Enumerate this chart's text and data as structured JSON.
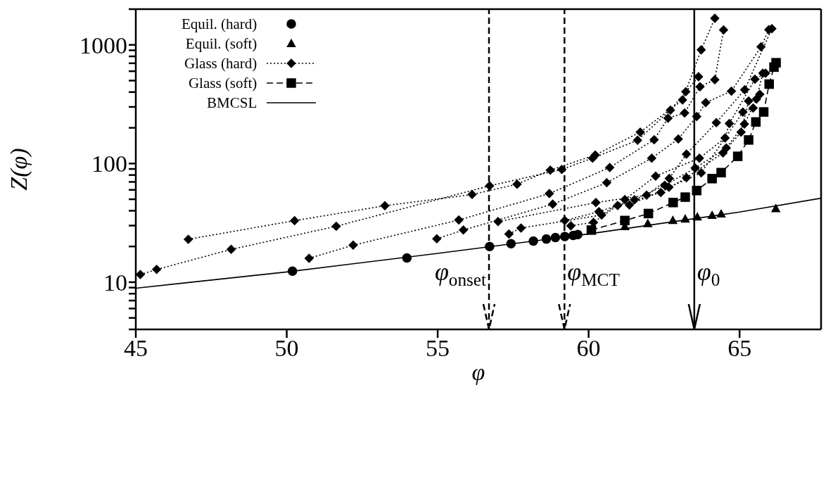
{
  "chart_data": {
    "type": "line",
    "xlabel": "φ",
    "ylabel": "Z(φ)",
    "xlim": [
      45,
      67.7
    ],
    "ylim": [
      4,
      2000
    ],
    "log": "y",
    "legend": "top left",
    "grid": false,
    "xticks": [
      45,
      50,
      55,
      60,
      65
    ],
    "yticks": [
      {
        "value": 4,
        "label": null
      },
      {
        "value": 5,
        "label": null
      },
      {
        "value": 6,
        "label": null
      },
      {
        "value": 7,
        "label": null
      },
      {
        "value": 8,
        "label": null
      },
      {
        "value": 9,
        "label": null
      },
      10,
      {
        "value": 20,
        "label": null
      },
      {
        "value": 30,
        "label": null
      },
      {
        "value": 40,
        "label": null
      },
      {
        "value": 50,
        "label": null
      },
      {
        "value": 60,
        "label": null
      },
      {
        "value": 70,
        "label": null
      },
      {
        "value": 80,
        "label": null
      },
      {
        "value": 90,
        "label": null
      },
      100,
      {
        "value": 200,
        "label": null
      },
      {
        "value": 300,
        "label": null
      },
      {
        "value": 400,
        "label": null
      },
      {
        "value": 500,
        "label": null
      },
      {
        "value": 600,
        "label": null
      },
      {
        "value": 700,
        "label": null
      },
      {
        "value": 800,
        "label": null
      },
      {
        "value": 900,
        "label": null
      },
      1000,
      {
        "value": 2000,
        "label": null
      }
    ],
    "ref_lines": [
      {
        "axis": "x",
        "value": 56.7,
        "label": "φ$_{onset}$",
        "line_style": "dashed",
        "color": "#000000"
      },
      {
        "axis": "x",
        "value": 59.2,
        "label": "φ$_{MCT}$",
        "line_style": "dashed",
        "color": "#000000"
      },
      {
        "axis": "x",
        "value": 63.5,
        "label": "φ$_{0}$",
        "line_style": "solid",
        "color": "#000000"
      }
    ],
    "series": [
      {
        "name": "Equil. (hard)",
        "type": "scatter",
        "marker": "circle",
        "color": "#000000",
        "x": [
          50.19,
          53.98,
          56.72,
          57.43,
          58.17,
          58.6,
          58.9,
          59.21,
          59.49,
          59.64
        ],
        "values": [
          12.4,
          16.0,
          20.0,
          21.1,
          22.2,
          23.1,
          23.8,
          24.3,
          24.8,
          25.2
        ]
      },
      {
        "name": "Equil. (soft)",
        "type": "scatter",
        "marker": "triangle",
        "color": "#000000",
        "x": [
          61.2,
          61.96,
          62.79,
          63.2,
          63.6,
          64.09,
          64.39,
          66.2
        ],
        "values": [
          29.4,
          31.1,
          33.1,
          34.0,
          35.4,
          36.5,
          37.5,
          41.6
        ]
      },
      {
        "name": "Glass (hard)",
        "marker": "diamond",
        "line_style": "dotted",
        "color": "#000000",
        "x": [
          46.74,
          50.26,
          53.25,
          56.14,
          57.63,
          58.73,
          60.22,
          61.71,
          63.11,
          63.73,
          64.18
        ],
        "values": [
          23.0,
          33.0,
          44.1,
          54.8,
          67.0,
          88,
          118,
          184,
          343,
          910,
          1675
        ]
      },
      {
        "marker": "diamond",
        "line_style": "dotted",
        "color": "#000000",
        "x": [
          45.15,
          45.69,
          48.16,
          51.64,
          56.72,
          59.11,
          60.13,
          61.62,
          62.71,
          63.22,
          63.64
        ],
        "values": [
          11.6,
          12.8,
          18.9,
          29.6,
          64.9,
          89,
          111,
          157,
          282,
          403,
          539
        ]
      },
      {
        "marker": "diamond",
        "line_style": "dotted",
        "color": "#000000",
        "x": [
          50.74,
          52.2,
          55.7,
          58.7,
          60.7,
          62.17,
          62.63,
          63.18,
          63.69,
          64.18,
          64.47
        ],
        "values": [
          15.9,
          20.5,
          33.4,
          55.8,
          92.7,
          159,
          241,
          267,
          444,
          509,
          1337
        ]
      },
      {
        "marker": "diamond",
        "line_style": "dotted",
        "color": "#000000",
        "x": [
          54.97,
          55.85,
          58.81,
          60.6,
          62.09,
          62.97,
          63.58,
          63.88,
          64.73,
          65.71,
          65.97
        ],
        "values": [
          23.2,
          27.5,
          45.5,
          68.9,
          111,
          161,
          249,
          326,
          408,
          962,
          1340
        ]
      },
      {
        "marker": "diamond",
        "line_style": "dotted",
        "color": "#000000",
        "x": [
          57.0,
          60.24,
          61.92,
          62.67,
          63.24,
          64.23,
          65.17,
          66.07
        ],
        "values": [
          32.4,
          46.9,
          54.1,
          74.9,
          120,
          221,
          419,
          1370
        ]
      },
      {
        "marker": "diamond",
        "line_style": "dotted",
        "color": "#000000",
        "x": [
          57.36,
          57.76,
          60.43,
          61.2,
          62.22,
          63.67,
          64.52,
          64.66,
          65.51,
          65.86
        ],
        "values": [
          25.5,
          28.6,
          36.8,
          49.7,
          78.4,
          111,
          164,
          217,
          514,
          578
        ]
      },
      {
        "marker": "diamond",
        "line_style": "dotted",
        "color": "#000000",
        "x": [
          59.21,
          60.34,
          61.52,
          62.52,
          63.53,
          64.56,
          65.16,
          65.56,
          65.77
        ],
        "values": [
          33.1,
          39.3,
          49.5,
          65.6,
          91.6,
          135,
          215,
          349,
          578
        ]
      },
      {
        "marker": "diamond",
        "line_style": "dotted",
        "color": "#000000",
        "x": [
          59.41,
          60.16,
          60.96,
          62.39,
          63.24,
          64.45,
          65.05,
          65.3,
          65.67
        ],
        "values": [
          29.9,
          31.9,
          44.3,
          56.9,
          75.9,
          123,
          184,
          336,
          383
        ]
      },
      {
        "marker": "diamond",
        "line_style": "dotted",
        "color": "#000000",
        "x": [
          61.35,
          62.66,
          63.73,
          65.11,
          65.45
        ],
        "values": [
          44.7,
          63.1,
          83.6,
          271,
          294
        ]
      },
      {
        "name": "Glass (soft)",
        "marker": "square",
        "line_style": "dashed",
        "color": "#000000",
        "x": [
          60.09,
          61.2,
          61.98,
          62.8,
          63.2,
          63.58,
          64.09,
          64.39,
          64.94,
          65.3,
          65.54,
          65.8,
          65.98,
          66.14,
          66.21
        ],
        "values": [
          27.5,
          33.1,
          37.9,
          46.9,
          52.1,
          59.2,
          74.6,
          83.8,
          115,
          158,
          224,
          272,
          467,
          649,
          707
        ]
      },
      {
        "name": "BMCSL",
        "marker": "none",
        "line_style": "solid",
        "color": "#000000",
        "x": [
          45,
          50,
          55,
          60,
          65,
          67.7
        ],
        "values": [
          8.9,
          12.2,
          17.5,
          25.5,
          39,
          51
        ]
      }
    ]
  }
}
